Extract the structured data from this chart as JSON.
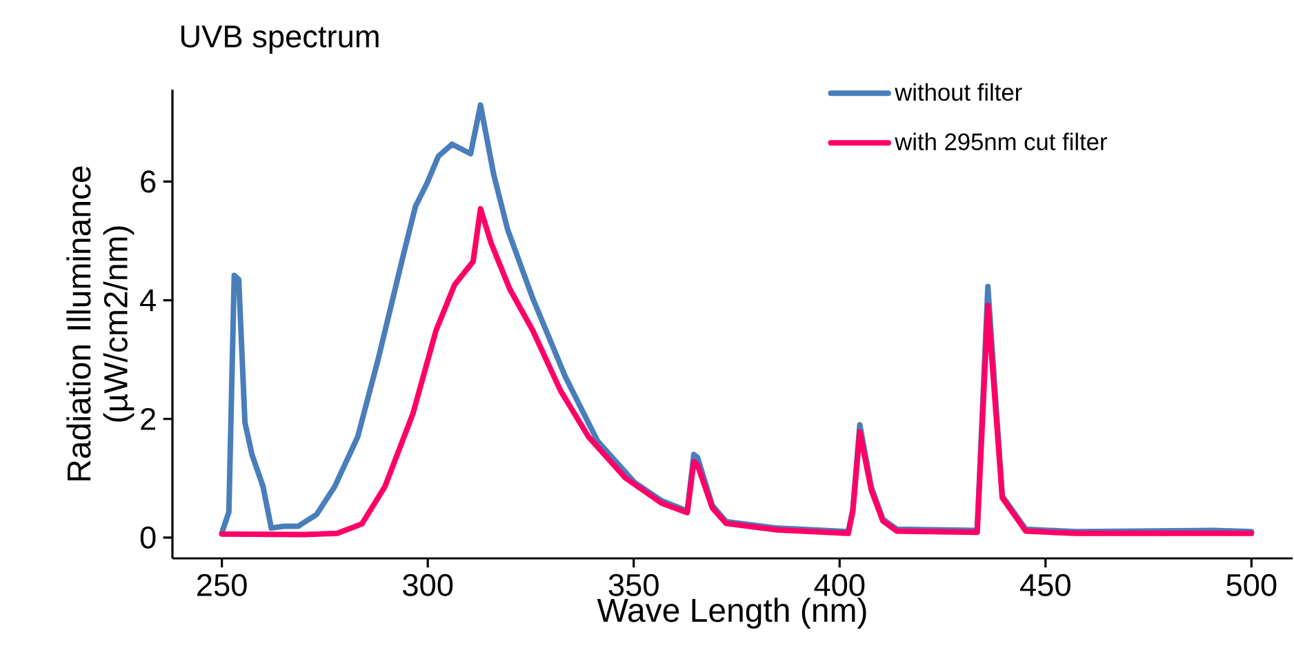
{
  "chart_data": {
    "type": "line",
    "title": "UVB spectrum",
    "xlabel": "Wave Length (nm)",
    "ylabel": "Radiation Illuminance (µW/cm2/nm)",
    "xlim": [
      238,
      510
    ],
    "ylim": [
      -0.35,
      7.55
    ],
    "xticks": [
      250,
      300,
      350,
      400,
      450,
      500
    ],
    "yticks": [
      0,
      2,
      4,
      6
    ],
    "legend": "top right",
    "marker": "none",
    "line_style": "solid",
    "series": [
      {
        "name": "without filter",
        "color": "#4a7ebb",
        "x": [
          250,
          251.7,
          253,
          254.1,
          255.6,
          257.3,
          260,
          262,
          265,
          268.5,
          273,
          277.4,
          283,
          288,
          294.2,
          297,
          299.8,
          302.6,
          305.9,
          310.4,
          312.8,
          316,
          319.4,
          325.5,
          333.4,
          341.2,
          350.2,
          356.8,
          363,
          364.6,
          365.5,
          369.1,
          372.4,
          384.8,
          402.1,
          403.2,
          404.9,
          407.7,
          410.5,
          413.9,
          433.4,
          436,
          439.5,
          445.2,
          457.5,
          491,
          500
        ],
        "values": [
          0.08,
          0.43,
          4.42,
          4.35,
          1.94,
          1.4,
          0.86,
          0.16,
          0.19,
          0.19,
          0.39,
          0.86,
          1.7,
          3.02,
          4.8,
          5.58,
          5.97,
          6.43,
          6.63,
          6.47,
          7.29,
          6.12,
          5.19,
          4.03,
          2.71,
          1.63,
          0.93,
          0.62,
          0.45,
          1.4,
          1.35,
          0.54,
          0.27,
          0.16,
          0.1,
          0.47,
          1.9,
          0.85,
          0.31,
          0.14,
          0.12,
          4.23,
          0.7,
          0.14,
          0.1,
          0.12,
          0.1
        ]
      },
      {
        "name": "with 295nm cut filter",
        "color": "#ff0066",
        "x": [
          250,
          270,
          278,
          284,
          289.6,
          296.4,
          302,
          306.5,
          311,
          312.8,
          315.4,
          319.9,
          325.5,
          332.2,
          339,
          347.9,
          356.8,
          363,
          364.6,
          365.5,
          369.1,
          372.4,
          384.8,
          402.1,
          403.2,
          404.9,
          407.7,
          410.5,
          413.9,
          433.4,
          436,
          439.5,
          445.2,
          457.5,
          500
        ],
        "values": [
          0.06,
          0.05,
          0.07,
          0.23,
          0.86,
          2.09,
          3.49,
          4.26,
          4.65,
          5.54,
          4.96,
          4.19,
          3.49,
          2.48,
          1.7,
          1.01,
          0.58,
          0.42,
          1.28,
          1.22,
          0.5,
          0.24,
          0.13,
          0.07,
          0.44,
          1.78,
          0.8,
          0.28,
          0.11,
          0.09,
          3.91,
          0.67,
          0.11,
          0.07,
          0.07
        ]
      }
    ]
  }
}
